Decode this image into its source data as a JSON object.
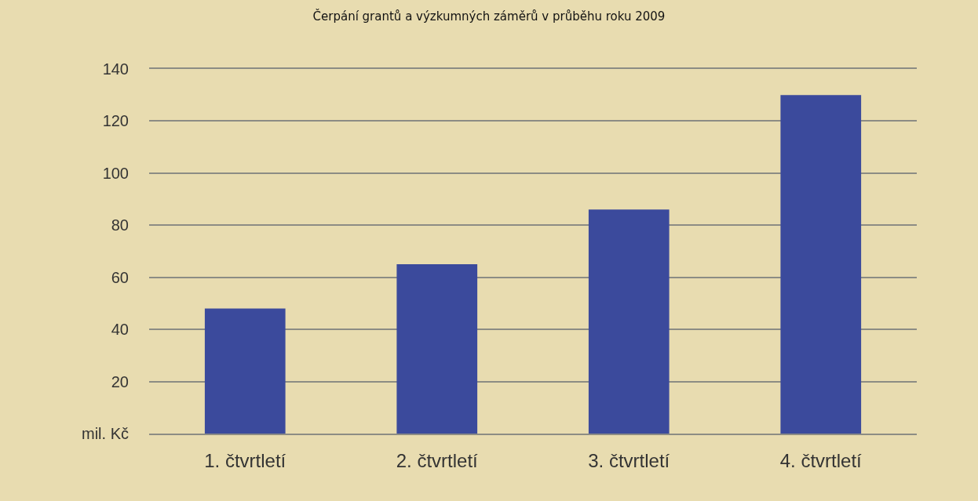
{
  "chart_data": {
    "type": "bar",
    "title": "Čerpání grantů a výzkumných záměrů v průběhu roku 2009",
    "categories": [
      "1. čtvrtletí",
      "2. čtvrtletí",
      "3. čtvrtletí",
      "4. čtvrtletí"
    ],
    "values": [
      48,
      65,
      86,
      130
    ],
    "color": "#3b4a9c",
    "ylim": [
      0,
      140
    ],
    "yticks": [
      {
        "value": 0,
        "label": "mil. Kč"
      },
      20,
      40,
      60,
      80,
      100,
      120,
      140
    ],
    "grid": "y"
  }
}
